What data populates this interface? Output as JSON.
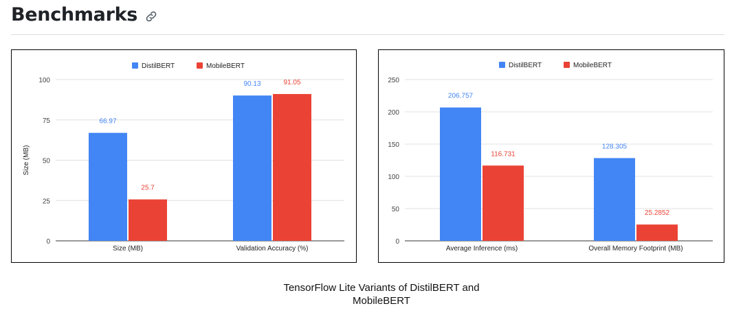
{
  "section": {
    "title": "Benchmarks",
    "link_icon": "link-icon"
  },
  "caption": {
    "line1": "TensorFlow Lite Variants of DistilBERT and",
    "line2": "MobileBERT"
  },
  "colors": {
    "distilbert": "#4285f4",
    "mobilebert": "#ea4335",
    "grid": "#e0e0e0",
    "axis": "#333333",
    "tick_text": "#444444"
  },
  "chart_data": [
    {
      "type": "bar",
      "title": "",
      "xlabel": "",
      "ylabel": "Size (MB)",
      "ylim": [
        0,
        100
      ],
      "yticks": [
        0,
        25,
        50,
        75,
        100
      ],
      "grid": true,
      "legend_position": "top-center",
      "categories": [
        "Size (MB)",
        "Validation Accuracy (%)"
      ],
      "series": [
        {
          "name": "DistilBERT",
          "color": "#4285f4",
          "values": [
            66.97,
            90.13
          ],
          "labels": [
            "66.97",
            "90.13"
          ]
        },
        {
          "name": "MobileBERT",
          "color": "#ea4335",
          "values": [
            25.7,
            91.05
          ],
          "labels": [
            "25.7",
            "91.05"
          ]
        }
      ]
    },
    {
      "type": "bar",
      "title": "",
      "xlabel": "",
      "ylabel": "",
      "ylim": [
        0,
        250
      ],
      "yticks": [
        0,
        50,
        100,
        150,
        200,
        250
      ],
      "grid": true,
      "legend_position": "top-center",
      "categories": [
        "Average Inference (ms)",
        "Overall Memory Footprint (MB)"
      ],
      "series": [
        {
          "name": "DistilBERT",
          "color": "#4285f4",
          "values": [
            206.757,
            128.305
          ],
          "labels": [
            "206.757",
            "128.305"
          ]
        },
        {
          "name": "MobileBERT",
          "color": "#ea4335",
          "values": [
            116.731,
            25.2852
          ],
          "labels": [
            "116.731",
            "25.2852"
          ]
        }
      ]
    }
  ]
}
